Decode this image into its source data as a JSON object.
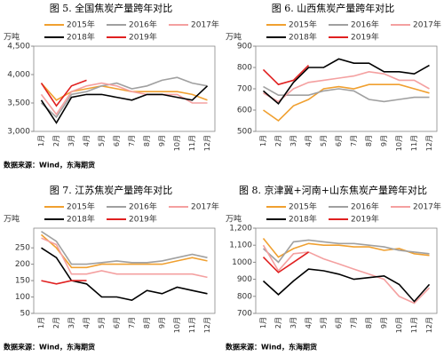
{
  "chart_data": [
    {
      "type": "line",
      "title": "图 5. 全国焦炭产量跨年对比",
      "unit": "万吨",
      "source": "数据来源：Wind，东海期货",
      "categories": [
        "1月",
        "2月",
        "3月",
        "4月",
        "5月",
        "6月",
        "7月",
        "8月",
        "9月",
        "10月",
        "11月",
        "12月"
      ],
      "ylim": [
        3000,
        4500
      ],
      "yticks": [
        {
          "value": 3000,
          "label": "3,000"
        },
        {
          "value": 3500,
          "label": "3,500"
        },
        {
          "value": 4000,
          "label": "4,000"
        },
        {
          "value": 4500,
          "label": "4,500"
        }
      ],
      "series": [
        {
          "name": "2015年",
          "color": "#f0a030",
          "values": [
            3850,
            3550,
            3700,
            3750,
            3800,
            3750,
            3700,
            3700,
            3700,
            3700,
            3650,
            3550
          ]
        },
        {
          "name": "2016年",
          "color": "#a0a0a0",
          "values": [
            3500,
            3250,
            3650,
            3700,
            3800,
            3850,
            3750,
            3800,
            3900,
            3950,
            3850,
            3800
          ]
        },
        {
          "name": "2017年",
          "color": "#f4a0a0",
          "values": [
            3650,
            3300,
            3700,
            3800,
            3850,
            3800,
            3700,
            3650,
            3650,
            3650,
            3500,
            3500
          ]
        },
        {
          "name": "2018年",
          "color": "#000000",
          "values": [
            3550,
            3150,
            3600,
            3650,
            3650,
            3600,
            3550,
            3650,
            3650,
            3600,
            3550,
            3800
          ]
        },
        {
          "name": "2019年",
          "color": "#e02020",
          "values": [
            3850,
            3450,
            3800,
            3900,
            null,
            null,
            null,
            null,
            null,
            null,
            null,
            null
          ]
        }
      ]
    },
    {
      "type": "line",
      "title": "图 6. 山西焦炭产量跨年对比",
      "unit": "万吨",
      "categories": [
        "1月",
        "2月",
        "3月",
        "4月",
        "5月",
        "6月",
        "7月",
        "8月",
        "9月",
        "10月",
        "11月",
        "12月"
      ],
      "ylim": [
        500,
        900
      ],
      "yticks": [
        500,
        600,
        700,
        800,
        900
      ],
      "series": [
        {
          "name": "2015年",
          "color": "#f0a030",
          "values": [
            600,
            550,
            620,
            650,
            700,
            710,
            700,
            720,
            720,
            720,
            700,
            680
          ]
        },
        {
          "name": "2016年",
          "color": "#a0a0a0",
          "values": [
            710,
            670,
            670,
            670,
            690,
            700,
            690,
            650,
            640,
            650,
            660,
            660
          ]
        },
        {
          "name": "2017年",
          "color": "#f4a0a0",
          "values": [
            680,
            640,
            700,
            730,
            740,
            750,
            760,
            780,
            770,
            740,
            740,
            700
          ]
        },
        {
          "name": "2018年",
          "color": "#000000",
          "values": [
            690,
            630,
            730,
            800,
            800,
            840,
            820,
            820,
            780,
            780,
            770,
            810
          ]
        },
        {
          "name": "2019年",
          "color": "#e02020",
          "values": [
            790,
            720,
            740,
            810,
            null,
            null,
            null,
            null,
            null,
            null,
            null,
            null
          ]
        }
      ]
    },
    {
      "type": "line",
      "title": "图 7. 江苏焦炭产量跨年对比",
      "unit": "万吨",
      "source": "数据来源：Wind，东海期货",
      "categories": [
        "1月",
        "2月",
        "3月",
        "4月",
        "5月",
        "6月",
        "7月",
        "8月",
        "9月",
        "10月",
        "11月",
        "12月"
      ],
      "ylim": [
        50,
        310
      ],
      "yticks": [
        50,
        100,
        150,
        200,
        250
      ],
      "series": [
        {
          "name": "2015年",
          "color": "#f0a030",
          "values": [
            290,
            250,
            190,
            190,
            200,
            200,
            200,
            200,
            200,
            210,
            220,
            210
          ]
        },
        {
          "name": "2016年",
          "color": "#a0a0a0",
          "values": [
            300,
            270,
            200,
            200,
            205,
            210,
            205,
            205,
            210,
            220,
            230,
            220
          ]
        },
        {
          "name": "2017年",
          "color": "#f4a0a0",
          "values": [
            280,
            260,
            170,
            170,
            180,
            170,
            170,
            170,
            170,
            170,
            170,
            160
          ]
        },
        {
          "name": "2018年",
          "color": "#000000",
          "values": [
            250,
            220,
            150,
            140,
            100,
            100,
            90,
            120,
            110,
            130,
            120,
            110
          ]
        },
        {
          "name": "2019年",
          "color": "#e02020",
          "values": [
            150,
            140,
            150,
            150,
            null,
            null,
            null,
            null,
            null,
            null,
            null,
            null
          ]
        }
      ]
    },
    {
      "type": "line",
      "title": "图 8. 京津冀+河南+山东焦炭产量跨年对比",
      "unit": "万吨",
      "source": "数据来源：Wind，东海期货",
      "categories": [
        "1月",
        "2月",
        "3月",
        "4月",
        "5月",
        "6月",
        "7月",
        "8月",
        "9月",
        "10月",
        "11月",
        "12月"
      ],
      "ylim": [
        700,
        1200
      ],
      "yticks": [
        700,
        800,
        900,
        1000,
        {
          "value": 1100,
          "label": "1,100"
        },
        {
          "value": 1200,
          "label": "1,200"
        }
      ],
      "series": [
        {
          "name": "2015年",
          "color": "#f0a030",
          "values": [
            1140,
            1030,
            1080,
            1110,
            1100,
            1100,
            1090,
            1090,
            1070,
            1080,
            1050,
            1040
          ]
        },
        {
          "name": "2016年",
          "color": "#a0a0a0",
          "values": [
            1080,
            1000,
            1120,
            1130,
            1120,
            1110,
            1110,
            1100,
            1090,
            1070,
            1060,
            1050
          ]
        },
        {
          "name": "2017年",
          "color": "#f4a0a0",
          "values": [
            1100,
            950,
            1050,
            1060,
            1020,
            990,
            960,
            930,
            900,
            800,
            760,
            850
          ]
        },
        {
          "name": "2018年",
          "color": "#000000",
          "values": [
            890,
            810,
            890,
            960,
            950,
            930,
            900,
            910,
            920,
            870,
            770,
            870
          ]
        },
        {
          "name": "2019年",
          "color": "#e02020",
          "values": [
            1030,
            940,
            1000,
            1060,
            null,
            null,
            null,
            null,
            null,
            null,
            null,
            null
          ]
        }
      ]
    }
  ]
}
